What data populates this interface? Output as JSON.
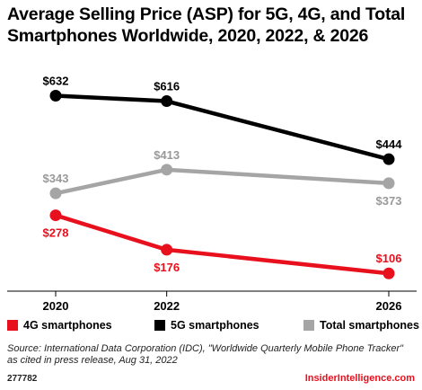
{
  "header": {
    "title": "Average Selling Price (ASP) for 5G, 4G, and Total Smartphones Worldwide, 2020, 2022, & 2026"
  },
  "chart_data": {
    "type": "line",
    "x": [
      "2020",
      "2022",
      "2026"
    ],
    "x_numeric": [
      2020,
      2022,
      2026
    ],
    "xlim": [
      2020,
      2026
    ],
    "ylim": [
      80,
      660
    ],
    "grid": false,
    "legend_position": "bottom",
    "series": [
      {
        "name": "4G smartphones",
        "color": "#e8101d",
        "values": [
          278,
          176,
          106
        ],
        "labels": [
          "$278",
          "$176",
          "$106"
        ],
        "label_side": [
          "below",
          "below",
          "above"
        ],
        "label_color": "#e8101d"
      },
      {
        "name": "5G smartphones",
        "color": "#000000",
        "values": [
          632,
          616,
          444
        ],
        "labels": [
          "$632",
          "$616",
          "$444"
        ],
        "label_side": [
          "above",
          "above",
          "above"
        ],
        "label_color": "#000000"
      },
      {
        "name": "Total smartphones",
        "color": "#a5a5a5",
        "values": [
          343,
          413,
          373
        ],
        "labels": [
          "$343",
          "$413",
          "$373"
        ],
        "label_side": [
          "above",
          "above",
          "below"
        ],
        "label_color": "#999999"
      }
    ]
  },
  "source": {
    "line1": "Source: International Data Corporation (IDC), \"Worldwide Quarterly Mobile Phone Tracker\"",
    "line2": "as cited in press release, Aug 31, 2022"
  },
  "footer": {
    "id": "277782",
    "brand": "InsiderIntelligence.com",
    "brand_color": "#e8101d"
  }
}
